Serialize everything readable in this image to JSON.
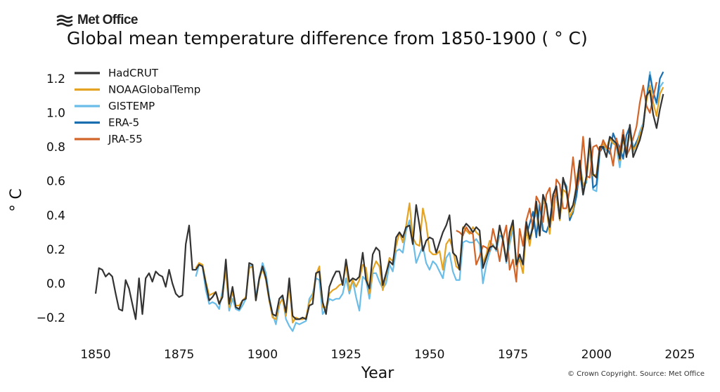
{
  "logo": {
    "text": "Met Office",
    "icon": "met-office-wave-icon"
  },
  "credit": "© Crown Copyright. Source: Met Office",
  "chart_data": {
    "type": "line",
    "title": "Global mean temperature difference from 1850-1900 ( ° C)",
    "xlabel": "Year",
    "ylabel": "° C",
    "xlim": [
      1845,
      2028
    ],
    "ylim": [
      -0.31,
      1.31
    ],
    "xticks": [
      1850,
      1875,
      1900,
      1925,
      1950,
      1975,
      2000,
      2025
    ],
    "xtick_labels": [
      "1850",
      "1875",
      "1900",
      "1925",
      "1950",
      "1975",
      "2000",
      "2025"
    ],
    "yticks": [
      -0.2,
      0.0,
      0.2,
      0.4,
      0.6,
      0.8,
      1.0,
      1.2
    ],
    "ytick_labels": [
      "−0.2",
      "0.0",
      "0.2",
      "0.4",
      "0.6",
      "0.8",
      "1.0",
      "1.2"
    ],
    "grid": false,
    "legend_position": "top-left",
    "series": [
      {
        "name": "HadCRUT",
        "color": "#333333",
        "start": 1850,
        "values": [
          -0.06,
          0.09,
          0.08,
          0.04,
          0.06,
          0.04,
          -0.06,
          -0.15,
          -0.16,
          0.02,
          -0.03,
          -0.12,
          -0.21,
          0.03,
          -0.18,
          0.03,
          0.06,
          0.01,
          0.07,
          0.05,
          0.04,
          -0.02,
          0.08,
          0.0,
          -0.06,
          -0.08,
          -0.07,
          0.23,
          0.34,
          0.08,
          0.08,
          0.11,
          0.1,
          0.0,
          -0.1,
          -0.08,
          -0.05,
          -0.12,
          -0.08,
          0.14,
          -0.12,
          -0.02,
          -0.14,
          -0.15,
          -0.1,
          -0.09,
          0.12,
          0.11,
          -0.1,
          0.03,
          0.1,
          0.03,
          -0.09,
          -0.18,
          -0.19,
          -0.09,
          -0.07,
          -0.17,
          0.03,
          -0.19,
          -0.21,
          -0.21,
          -0.2,
          -0.21,
          -0.13,
          -0.12,
          0.06,
          0.07,
          -0.11,
          -0.18,
          -0.02,
          0.03,
          0.07,
          0.07,
          -0.01,
          0.14,
          0.01,
          0.03,
          0.02,
          0.04,
          0.18,
          0.02,
          -0.03,
          0.17,
          0.21,
          0.19,
          -0.01,
          0.06,
          0.13,
          0.11,
          0.27,
          0.3,
          0.27,
          0.33,
          0.34,
          0.23,
          0.46,
          0.34,
          0.19,
          0.25,
          0.27,
          0.26,
          0.18,
          0.24,
          0.3,
          0.34,
          0.4,
          0.18,
          0.16,
          0.08,
          0.32,
          0.35,
          0.33,
          0.3,
          0.33,
          0.31,
          0.09,
          0.15,
          0.21,
          0.22,
          0.2,
          0.34,
          0.25,
          0.13,
          0.3,
          0.37,
          0.11,
          0.17,
          0.11,
          0.36,
          0.26,
          0.33,
          0.48,
          0.28,
          0.52,
          0.46,
          0.33,
          0.52,
          0.57,
          0.38,
          0.62,
          0.55,
          0.42,
          0.46,
          0.56,
          0.72,
          0.52,
          0.63,
          0.85,
          0.64,
          0.62,
          0.8,
          0.8,
          0.74,
          0.86,
          0.84,
          0.82,
          0.73,
          0.87,
          0.74,
          0.93,
          0.74,
          0.79,
          0.84,
          0.92,
          1.1,
          1.13,
          0.99,
          0.91,
          1.02,
          1.11
        ]
      },
      {
        "name": "NOAAGlobalTemp",
        "color": "#e5a323",
        "start": 1880,
        "values": [
          0.09,
          0.12,
          0.11,
          0.01,
          -0.07,
          -0.06,
          -0.05,
          -0.12,
          -0.07,
          0.08,
          -0.14,
          -0.05,
          -0.13,
          -0.13,
          -0.1,
          -0.08,
          0.09,
          0.1,
          -0.1,
          0.02,
          0.09,
          0.02,
          -0.1,
          -0.2,
          -0.21,
          -0.12,
          -0.09,
          -0.19,
          0.0,
          -0.23,
          -0.2,
          -0.21,
          -0.21,
          -0.2,
          -0.11,
          -0.08,
          0.05,
          0.1,
          -0.14,
          -0.14,
          -0.06,
          -0.04,
          -0.03,
          -0.01,
          0.0,
          0.11,
          -0.04,
          0.02,
          -0.02,
          0.02,
          0.11,
          0.09,
          -0.06,
          0.08,
          0.13,
          0.1,
          -0.04,
          0.05,
          0.15,
          0.13,
          0.22,
          0.3,
          0.24,
          0.34,
          0.47,
          0.27,
          0.23,
          0.22,
          0.44,
          0.35,
          0.19,
          0.17,
          0.17,
          0.19,
          0.08,
          0.23,
          0.26,
          0.2,
          0.1,
          0.08,
          0.33,
          0.31,
          0.29,
          0.33,
          0.3,
          0.28,
          0.12,
          0.17,
          0.25,
          0.22,
          0.2,
          0.33,
          0.26,
          0.14,
          0.27,
          0.34,
          0.1,
          0.14,
          0.06,
          0.32,
          0.22,
          0.35,
          0.44,
          0.28,
          0.5,
          0.45,
          0.29,
          0.49,
          0.53,
          0.37,
          0.55,
          0.53,
          0.39,
          0.43,
          0.59,
          0.72,
          0.57,
          0.61,
          0.81,
          0.63,
          0.64,
          0.8,
          0.82,
          0.79,
          0.85,
          0.82,
          0.81,
          0.72,
          0.84,
          0.78,
          0.88,
          0.78,
          0.81,
          0.87,
          0.93,
          1.07,
          1.16,
          1.06,
          0.98,
          1.11,
          1.15
        ]
      },
      {
        "name": "GISTEMP",
        "color": "#6abde8",
        "start": 1880,
        "values": [
          0.04,
          0.11,
          0.1,
          -0.04,
          -0.12,
          -0.11,
          -0.12,
          -0.15,
          -0.04,
          0.08,
          -0.16,
          -0.09,
          -0.15,
          -0.16,
          -0.13,
          -0.09,
          0.1,
          0.11,
          -0.08,
          0.03,
          0.12,
          0.06,
          -0.08,
          -0.18,
          -0.24,
          -0.13,
          -0.08,
          -0.21,
          -0.25,
          -0.28,
          -0.23,
          -0.24,
          -0.23,
          -0.22,
          -0.09,
          -0.06,
          0.03,
          0.02,
          -0.18,
          -0.15,
          -0.09,
          -0.1,
          -0.09,
          -0.09,
          -0.06,
          0.03,
          -0.06,
          0.02,
          -0.08,
          -0.16,
          0.04,
          0.02,
          -0.09,
          0.06,
          0.06,
          0.01,
          -0.03,
          0.0,
          0.11,
          0.07,
          0.19,
          0.2,
          0.18,
          0.31,
          0.37,
          0.26,
          0.12,
          0.17,
          0.22,
          0.12,
          0.08,
          0.13,
          0.11,
          0.07,
          0.03,
          0.15,
          0.18,
          0.07,
          0.02,
          0.02,
          0.24,
          0.25,
          0.24,
          0.24,
          0.26,
          0.23,
          0.0,
          0.11,
          0.18,
          0.23,
          0.19,
          0.28,
          0.27,
          0.12,
          0.23,
          0.32,
          0.13,
          0.15,
          0.12,
          0.33,
          0.24,
          0.37,
          0.41,
          0.29,
          0.47,
          0.47,
          0.3,
          0.51,
          0.52,
          0.37,
          0.59,
          0.57,
          0.39,
          0.41,
          0.56,
          0.72,
          0.57,
          0.59,
          0.81,
          0.55,
          0.54,
          0.77,
          0.81,
          0.78,
          0.86,
          0.83,
          0.8,
          0.68,
          0.85,
          0.79,
          0.9,
          0.77,
          0.82,
          0.89,
          0.94,
          1.08,
          1.24,
          1.12,
          1.05,
          1.15,
          1.18
        ]
      },
      {
        "name": "ERA-5",
        "color": "#1a6fb0",
        "start": 1979,
        "values": [
          0.28,
          0.35,
          0.42,
          0.27,
          0.47,
          0.31,
          0.3,
          0.36,
          0.51,
          0.52,
          0.38,
          0.61,
          0.57,
          0.37,
          0.42,
          0.51,
          0.66,
          0.52,
          0.62,
          0.83,
          0.56,
          0.58,
          0.77,
          0.8,
          0.8,
          0.76,
          0.88,
          0.83,
          0.8,
          0.73,
          0.87,
          0.92,
          0.79,
          0.83,
          0.87,
          0.92,
          1.08,
          1.22,
          1.12,
          1.06,
          1.2,
          1.24
        ]
      },
      {
        "name": "JRA-55",
        "color": "#d2652a",
        "start": 1958,
        "values": [
          0.31,
          0.3,
          0.28,
          0.33,
          0.3,
          0.29,
          0.11,
          0.16,
          0.22,
          0.21,
          0.19,
          0.32,
          0.24,
          0.13,
          0.26,
          0.34,
          0.08,
          0.14,
          0.01,
          0.32,
          0.22,
          0.37,
          0.44,
          0.32,
          0.51,
          0.47,
          0.36,
          0.52,
          0.56,
          0.37,
          0.61,
          0.58,
          0.44,
          0.44,
          0.55,
          0.74,
          0.55,
          0.62,
          0.86,
          0.63,
          0.62,
          0.8,
          0.81,
          0.77,
          0.84,
          0.8,
          0.79,
          0.69,
          0.85,
          0.76,
          0.9,
          0.75,
          0.79,
          0.85,
          0.92,
          1.06,
          1.16,
          1.04,
          1.0,
          1.09,
          1.18
        ]
      }
    ]
  }
}
